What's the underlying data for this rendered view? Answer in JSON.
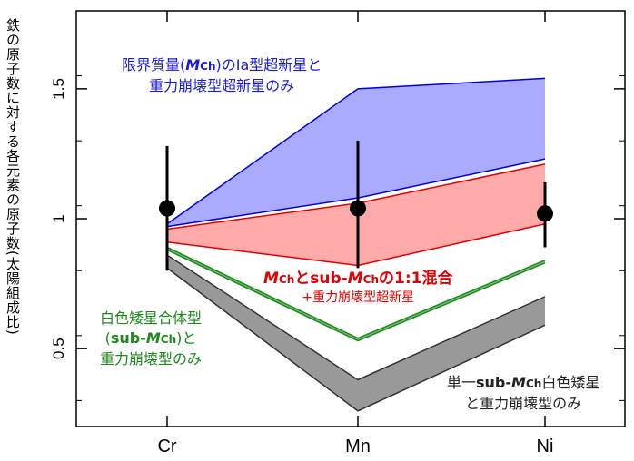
{
  "chart_data": {
    "type": "area",
    "ylabel": "鉄の原子数に対する各元素の原子数(太陽組成比)",
    "categories": [
      "Cr",
      "Mn",
      "Ni"
    ],
    "ylim": [
      0.2,
      1.8
    ],
    "yticks": [
      0.5,
      1,
      1.5
    ],
    "ytick_labels": [
      "0.5",
      "1",
      "1.5"
    ],
    "observed": {
      "values": [
        1.04,
        1.04,
        1.02
      ],
      "err_low": [
        0.24,
        0.23,
        0.13
      ],
      "err_high": [
        0.24,
        0.26,
        0.12
      ]
    },
    "series": [
      {
        "name": "限界質量(MCh)のIa型超新星と重力崩壊型超新星のみ",
        "color": "#0000dd",
        "fill": "#aaaaff",
        "upper": [
          0.98,
          1.5,
          1.54
        ],
        "lower": [
          0.97,
          1.08,
          1.23
        ]
      },
      {
        "name": "MChとsub-MChの1:1混合+重力崩壊型超新星",
        "color": "#e00000",
        "fill": "#ffaaaa",
        "upper": [
          0.96,
          1.06,
          1.21
        ],
        "lower": [
          0.91,
          0.82,
          0.98
        ]
      },
      {
        "name": "白色矮星合体型(sub-MCh)と重力崩壊型のみ",
        "color": "#1b8a1b",
        "fill": "#7fbf7f",
        "upper": [
          0.89,
          0.54,
          0.84
        ],
        "lower": [
          0.88,
          0.53,
          0.83
        ]
      },
      {
        "name": "単一sub-MCh白色矮星と重力崩壊型のみ",
        "color": "#333333",
        "fill": "#999999",
        "upper": [
          0.86,
          0.38,
          0.7
        ],
        "lower": [
          0.81,
          0.26,
          0.59
        ]
      }
    ]
  },
  "annotations": {
    "blue_line1": "限界質量(",
    "blue_m": "M",
    "blue_ch": "Ch",
    "blue_line1_end": ")のIa型超新星と",
    "blue_line2": "重力崩壊型超新星のみ",
    "red_m1": "M",
    "red_ch1": "Ch",
    "red_mid": "とsub-",
    "red_m2": "M",
    "red_ch2": "Ch",
    "red_end": "の1:1混合",
    "red_line2": "+重力崩壊型超新星",
    "green_line1": "白色矮星合体型",
    "green_paren_open": "(",
    "green_sub": "sub-",
    "green_m": "M",
    "green_ch": "Ch",
    "green_paren_close": ")と",
    "green_line3": "重力崩壊型のみ",
    "gray_single": "単一",
    "gray_sub": "sub-",
    "gray_m": "M",
    "gray_ch": "Ch",
    "gray_line1_end": "白色矮星",
    "gray_line2": "と重力崩壊型のみ"
  }
}
